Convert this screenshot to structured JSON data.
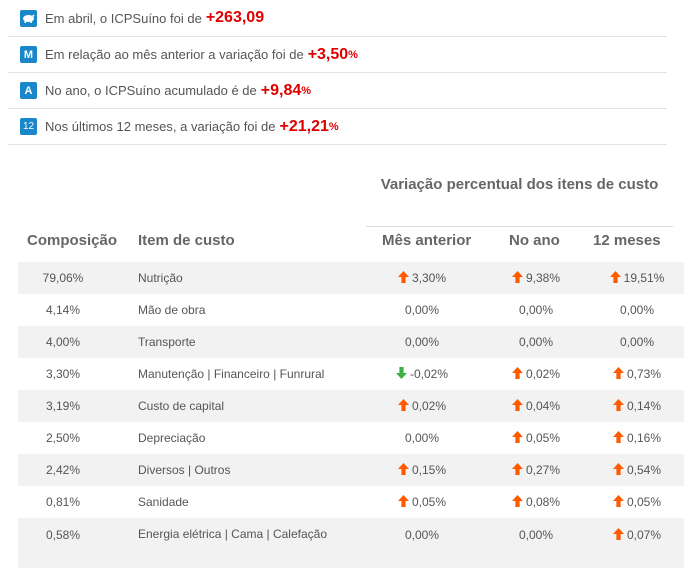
{
  "summary": [
    {
      "icon": "pig-icon",
      "text": "Em abril, o ICPSuíno foi de ",
      "value": "+263,09",
      "unit": ""
    },
    {
      "icon": "M",
      "text": "Em relação ao mês anterior a variação foi de ",
      "value": "+3,50",
      "unit": "%"
    },
    {
      "icon": "A",
      "text": "No ano, o ICPSuíno acumulado é de ",
      "value": "+9,84",
      "unit": "%"
    },
    {
      "icon": "12",
      "text": "Nos últimos 12 meses, a variação foi de ",
      "value": "+21,21",
      "unit": "%"
    }
  ],
  "table": {
    "group_header": "Variação percentual dos itens de custo",
    "headers": {
      "composicao": "Composição",
      "item": "Item de custo",
      "mes": "Mês anterior",
      "ano": "No ano",
      "doze": "12 meses"
    },
    "rows": [
      {
        "comp": "79,06%",
        "item": "Nutrição",
        "mes": "3,30%",
        "mes_dir": "up",
        "ano": "9,38%",
        "ano_dir": "up",
        "doze": "19,51%",
        "doze_dir": "up"
      },
      {
        "comp": "4,14%",
        "item": "Mão de obra",
        "mes": "0,00%",
        "mes_dir": "none",
        "ano": "0,00%",
        "ano_dir": "none",
        "doze": "0,00%",
        "doze_dir": "none"
      },
      {
        "comp": "4,00%",
        "item": "Transporte",
        "mes": "0,00%",
        "mes_dir": "none",
        "ano": "0,00%",
        "ano_dir": "none",
        "doze": "0,00%",
        "doze_dir": "none"
      },
      {
        "comp": "3,30%",
        "item": "Manutenção | Financeiro | Funrural",
        "mes": "-0,02%",
        "mes_dir": "down",
        "ano": "0,02%",
        "ano_dir": "up",
        "doze": "0,73%",
        "doze_dir": "up"
      },
      {
        "comp": "3,19%",
        "item": "Custo de capital",
        "mes": "0,02%",
        "mes_dir": "up",
        "ano": "0,04%",
        "ano_dir": "up",
        "doze": "0,14%",
        "doze_dir": "up"
      },
      {
        "comp": "2,50%",
        "item": "Depreciação",
        "mes": "0,00%",
        "mes_dir": "none",
        "ano": "0,05%",
        "ano_dir": "up",
        "doze": "0,16%",
        "doze_dir": "up"
      },
      {
        "comp": "2,42%",
        "item": "Diversos | Outros",
        "mes": "0,15%",
        "mes_dir": "up",
        "ano": "0,27%",
        "ano_dir": "up",
        "doze": "0,54%",
        "doze_dir": "up"
      },
      {
        "comp": "0,81%",
        "item": "Sanidade",
        "mes": "0,05%",
        "mes_dir": "up",
        "ano": "0,08%",
        "ano_dir": "up",
        "doze": "0,05%",
        "doze_dir": "up"
      },
      {
        "comp": "0,58%",
        "item": "Energia elétrica | Cama | Calefação",
        "mes": "0,00%",
        "mes_dir": "none",
        "ano": "0,00%",
        "ano_dir": "none",
        "doze": "0,07%",
        "doze_dir": "up"
      }
    ]
  },
  "colors": {
    "accent": "#1987c9",
    "highlight": "#e00000",
    "arrow_up": "#ff5a00",
    "arrow_down": "#3cb043",
    "row_alt": "#f2f2f2"
  }
}
